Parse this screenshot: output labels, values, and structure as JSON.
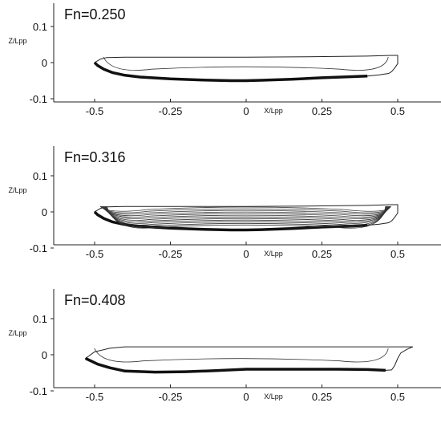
{
  "chart_data": [
    {
      "type": "line",
      "title": "Fn=0.250",
      "xlabel": "X/Lpp",
      "ylabel": "Z/Lpp",
      "xlim": [
        -0.55,
        0.55
      ],
      "ylim": [
        -0.12,
        0.14
      ],
      "xticks": [
        -0.5,
        -0.25,
        0,
        0.25,
        0.5
      ],
      "xtick_labels": [
        "-0.5",
        "-0.25",
        "0",
        "0.25",
        "0.5"
      ],
      "yticks": [
        0.1,
        0,
        -0.1
      ],
      "ytick_labels": [
        "0.1",
        "0",
        "-0.1"
      ],
      "contour_lines": 2,
      "series": [
        {
          "x": [
            -0.5,
            -0.49,
            -0.47,
            -0.44,
            -0.4,
            -0.35,
            -0.25,
            -0.15,
            -0.05,
            0.0,
            0.05,
            0.15,
            0.25,
            0.35,
            0.4,
            0.44,
            0.47,
            0.48,
            0.49,
            0.5,
            0.5,
            0.48,
            0.4,
            0.2,
            0.0,
            -0.2,
            -0.4,
            -0.46,
            -0.48,
            -0.5
          ],
          "y": [
            0.0,
            -0.008,
            -0.018,
            -0.028,
            -0.035,
            -0.04,
            -0.045,
            -0.048,
            -0.05,
            -0.05,
            -0.049,
            -0.046,
            -0.042,
            -0.039,
            -0.037,
            -0.034,
            -0.03,
            -0.025,
            -0.015,
            -0.003,
            0.02,
            0.02,
            0.018,
            0.016,
            0.015,
            0.015,
            0.015,
            0.014,
            0.01,
            0.0
          ]
        }
      ]
    },
    {
      "type": "line",
      "title": "Fn=0.316",
      "xlabel": "X/Lpp",
      "ylabel": "Z/Lpp",
      "xlim": [
        -0.55,
        0.55
      ],
      "ylim": [
        -0.12,
        0.14
      ],
      "xticks": [
        -0.5,
        -0.25,
        0,
        0.25,
        0.5
      ],
      "xtick_labels": [
        "-0.5",
        "-0.25",
        "0",
        "0.25",
        "0.5"
      ],
      "yticks": [
        0.1,
        0,
        -0.1
      ],
      "ytick_labels": [
        "0.1",
        "0",
        "-0.1"
      ],
      "contour_lines": 13,
      "series": [
        {
          "x": [
            -0.5,
            -0.49,
            -0.47,
            -0.44,
            -0.4,
            -0.35,
            -0.25,
            -0.15,
            -0.05,
            0.0,
            0.05,
            0.15,
            0.25,
            0.35,
            0.4,
            0.44,
            0.47,
            0.48,
            0.49,
            0.5,
            0.5,
            0.48,
            0.4,
            0.2,
            0.0,
            -0.2,
            -0.4,
            -0.46,
            -0.48,
            -0.5
          ],
          "y": [
            0.0,
            -0.008,
            -0.018,
            -0.028,
            -0.035,
            -0.04,
            -0.045,
            -0.048,
            -0.05,
            -0.05,
            -0.049,
            -0.046,
            -0.042,
            -0.039,
            -0.037,
            -0.034,
            -0.03,
            -0.025,
            -0.015,
            -0.003,
            0.02,
            0.02,
            0.018,
            0.016,
            0.015,
            0.015,
            0.015,
            0.014,
            0.01,
            0.0
          ]
        }
      ]
    },
    {
      "type": "line",
      "title": "Fn=0.408",
      "xlabel": "X/Lpp",
      "ylabel": "Z/Lpp",
      "xlim": [
        -0.55,
        0.55
      ],
      "ylim": [
        -0.12,
        0.14
      ],
      "xticks": [
        -0.5,
        -0.25,
        0,
        0.25,
        0.5
      ],
      "xtick_labels": [
        "-0.5",
        "-0.25",
        "0",
        "0.25",
        "0.5"
      ],
      "yticks": [
        0.1,
        0,
        -0.1
      ],
      "ytick_labels": [
        "0.1",
        "0",
        "-0.1"
      ],
      "contour_lines": 2,
      "series": [
        {
          "x": [
            -0.53,
            -0.51,
            -0.49,
            -0.45,
            -0.4,
            -0.3,
            -0.2,
            -0.1,
            0.0,
            0.1,
            0.2,
            0.3,
            0.4,
            0.46,
            0.48,
            0.49,
            0.5,
            0.51,
            0.53,
            0.55,
            0.4,
            0.2,
            0.0,
            -0.2,
            -0.4,
            -0.45,
            -0.5,
            -0.53
          ],
          "y": [
            -0.01,
            -0.018,
            -0.026,
            -0.036,
            -0.045,
            -0.048,
            -0.047,
            -0.044,
            -0.04,
            -0.04,
            -0.04,
            -0.04,
            -0.041,
            -0.043,
            -0.042,
            -0.03,
            -0.01,
            0.005,
            0.015,
            0.022,
            0.022,
            0.022,
            0.022,
            0.022,
            0.022,
            0.018,
            0.008,
            -0.01
          ]
        }
      ]
    }
  ]
}
